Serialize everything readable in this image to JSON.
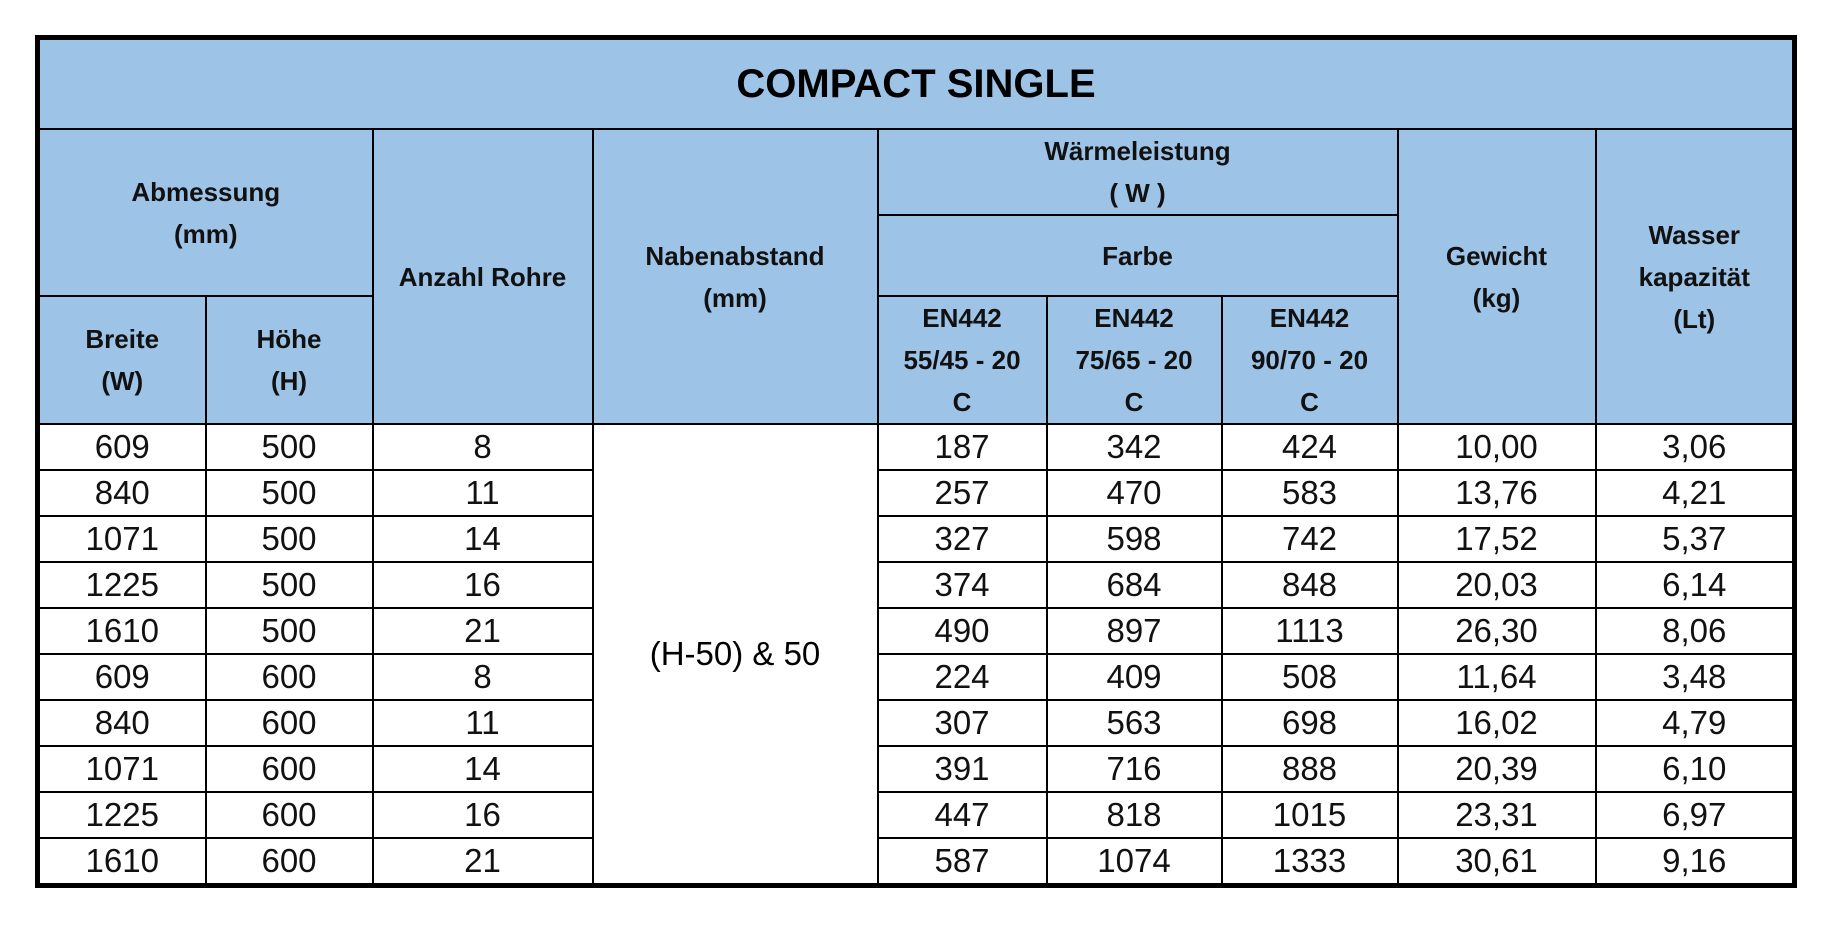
{
  "title": "COMPACT SINGLE",
  "header": {
    "dimensions": "Abmessung\n(mm)",
    "tubes": "Anzahl Rohre",
    "hub_distance": "Nabenabstand\n(mm)",
    "heat_output": "Wärmeleistung\n( W )",
    "color": "Farbe",
    "weight": "Gewicht\n(kg)",
    "water": "Wasser\nkapazität\n(Lt)",
    "width": "Breite\n(W)",
    "height": "Höhe\n(H)",
    "en1": "EN442\n55/45 - 20\nC",
    "en2": "EN442\n75/65 - 20\nC",
    "en3": "EN442\n90/70 - 20\nC"
  },
  "hub_distance_value": "(H-50) & 50",
  "table": {
    "rows": [
      [
        609,
        500,
        8,
        187,
        342,
        424,
        "10,00",
        "3,06"
      ],
      [
        840,
        500,
        11,
        257,
        470,
        583,
        "13,76",
        "4,21"
      ],
      [
        1071,
        500,
        14,
        327,
        598,
        742,
        "17,52",
        "5,37"
      ],
      [
        1225,
        500,
        16,
        374,
        684,
        848,
        "20,03",
        "6,14"
      ],
      [
        1610,
        500,
        21,
        490,
        897,
        1113,
        "26,30",
        "8,06"
      ],
      [
        609,
        600,
        8,
        224,
        409,
        508,
        "11,64",
        "3,48"
      ],
      [
        840,
        600,
        11,
        307,
        563,
        698,
        "16,02",
        "4,79"
      ],
      [
        1071,
        600,
        14,
        391,
        716,
        888,
        "20,39",
        "6,10"
      ],
      [
        1225,
        600,
        16,
        447,
        818,
        1015,
        "23,31",
        "6,97"
      ],
      [
        1610,
        600,
        21,
        587,
        1074,
        1333,
        "30,61",
        "9,16"
      ]
    ]
  }
}
